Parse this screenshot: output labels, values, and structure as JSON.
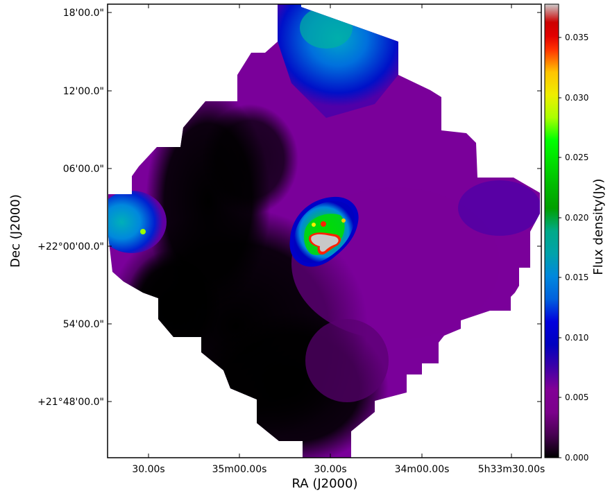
{
  "figure": {
    "x_axis_title": "RA (J2000)",
    "y_axis_title": "Dec (J2000)",
    "x_ticks": [
      "30.00s",
      "35m00.00s",
      "30.00s",
      "34m00.00s",
      "5h33m30.00s"
    ],
    "y_ticks": [
      "18'00.0\"",
      "12'00.0\"",
      "06'00.0\"",
      "+22°00'00.0\"",
      "54'00.0\"",
      "+21°48'00.0\""
    ],
    "colorbar": {
      "title": "Flux density(Jy)",
      "ticks": [
        "0.000",
        "0.005",
        "0.010",
        "0.015",
        "0.020",
        "0.025",
        "0.030",
        "0.035"
      ],
      "range": [
        0.0,
        0.0377
      ],
      "colormap": "nipy_spectral"
    },
    "colors": {
      "background": "#ffffff",
      "map_diffuse": "#7a009a",
      "map_dark": "#000000",
      "map_bright_blue": "#0040ff",
      "map_peak": "#c8c8c8"
    }
  }
}
